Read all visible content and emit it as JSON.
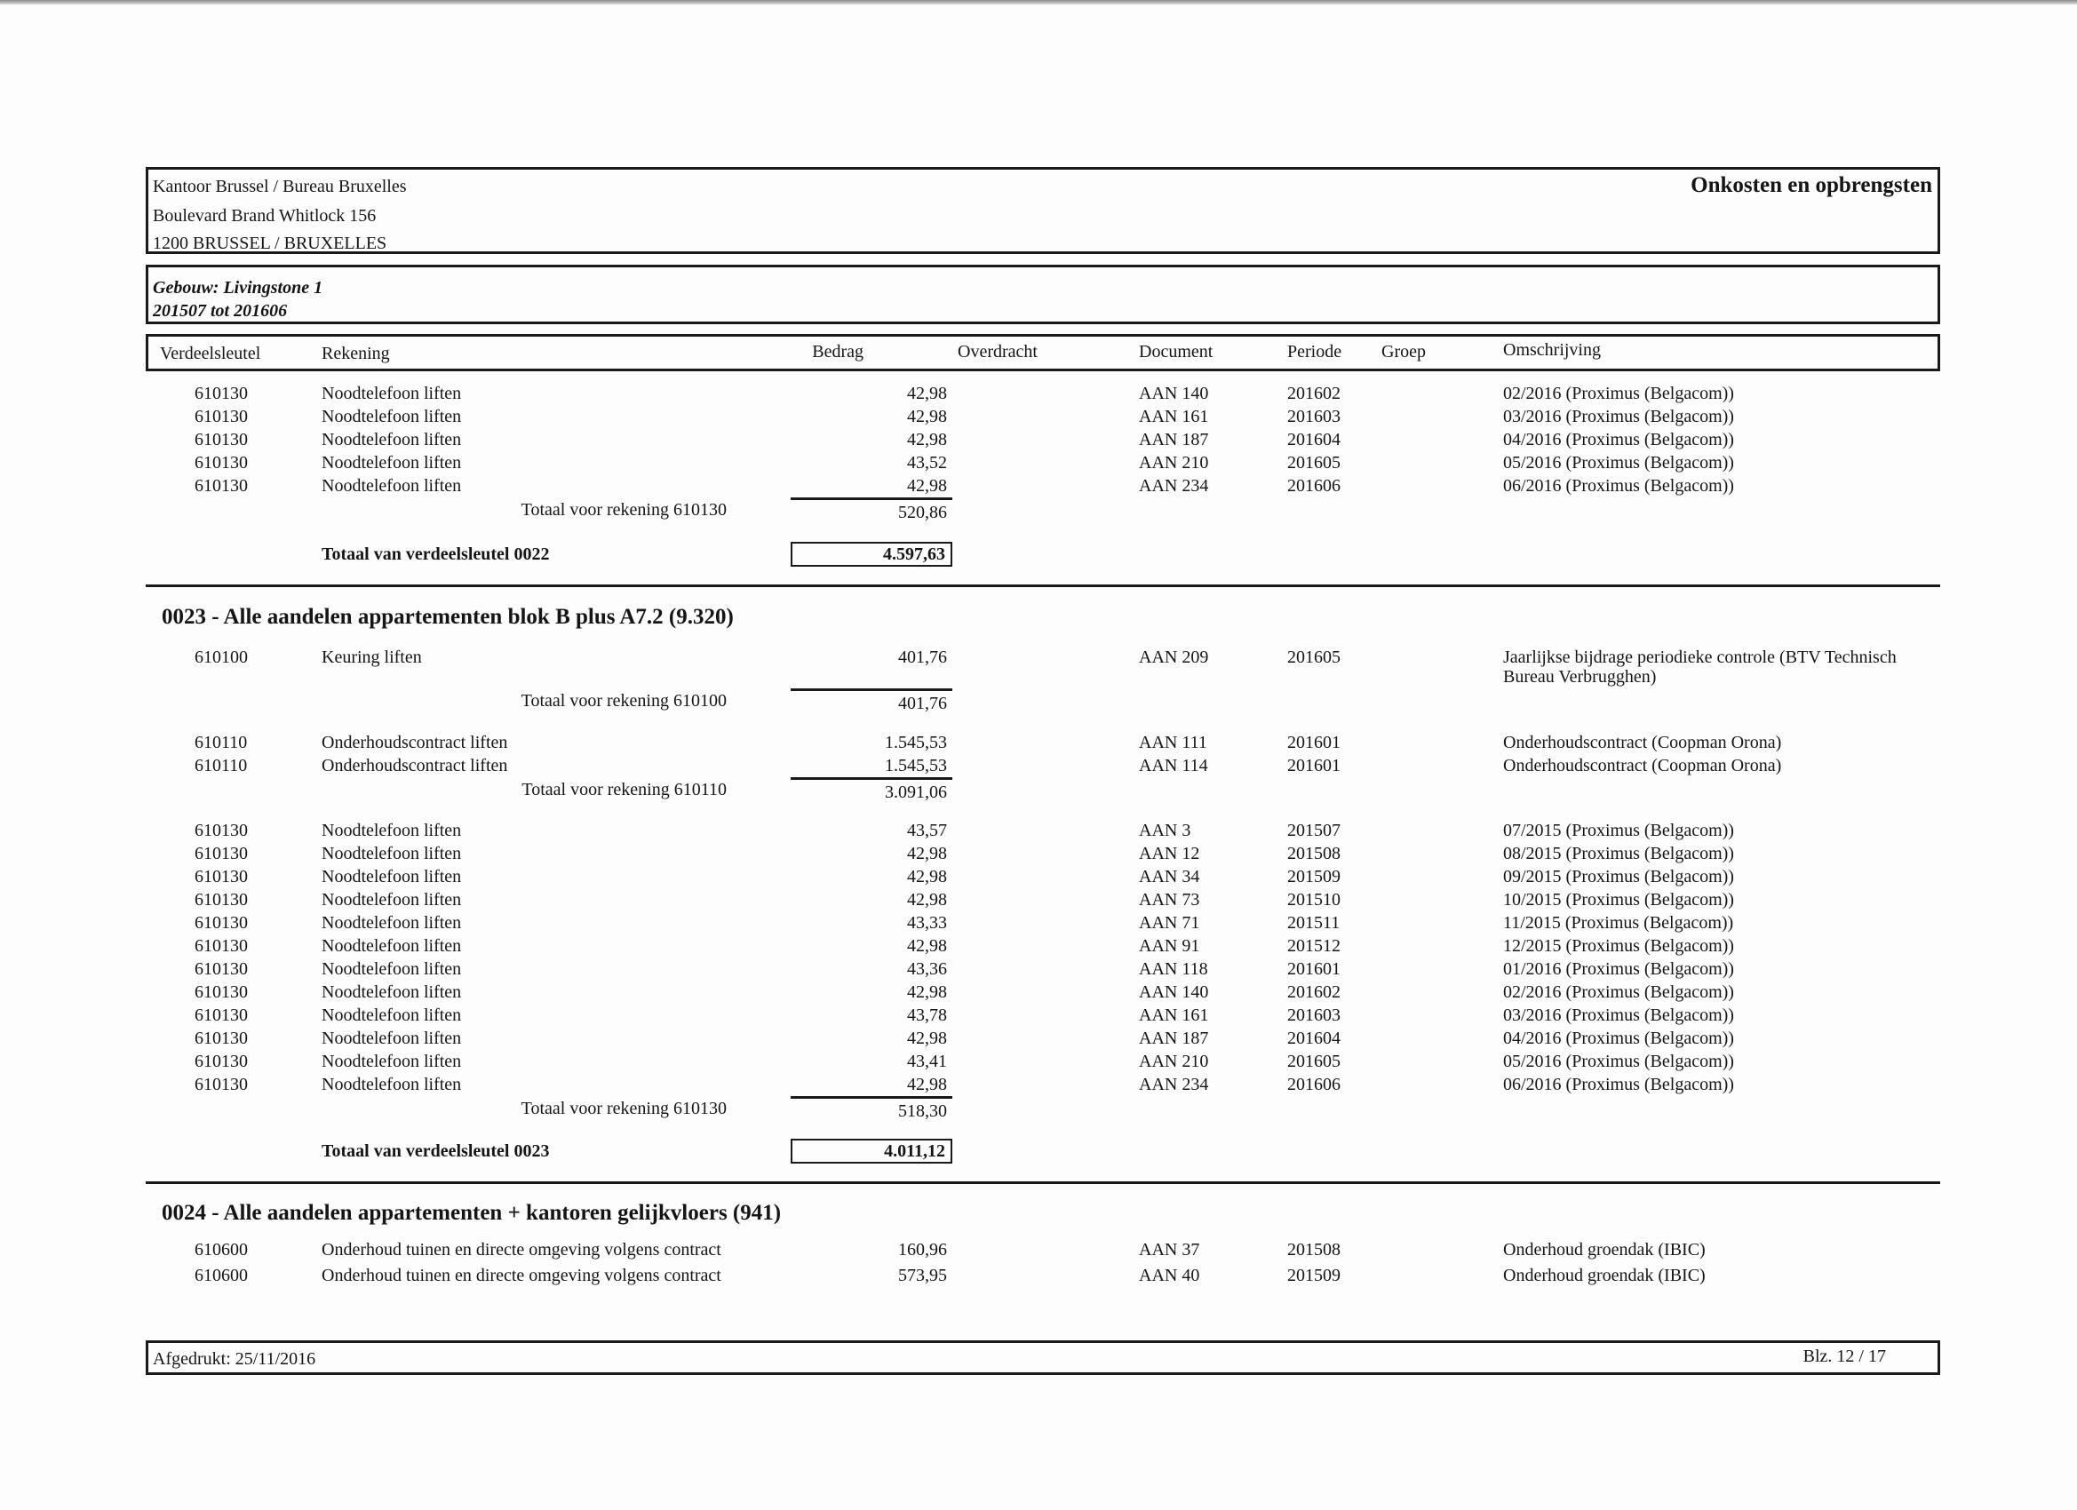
{
  "header": {
    "office_line1": "Kantoor Brussel / Bureau Bruxelles",
    "office_line2": "Boulevard Brand Whitlock 156",
    "office_line3": "1200 BRUSSEL / BRUXELLES",
    "report_title": "Onkosten en opbrengsten"
  },
  "building": {
    "name": "Gebouw: Livingstone 1",
    "period": "201507 tot 201606"
  },
  "columns": {
    "verdeelsleutel": "Verdeelsleutel",
    "rekening": "Rekening",
    "bedrag": "Bedrag",
    "overdracht": "Overdracht",
    "document": "Document",
    "periode": "Periode",
    "groep": "Groep",
    "omschrijving": "Omschrijving"
  },
  "sections": [
    {
      "heading": "",
      "groups": [
        {
          "rows": [
            {
              "code": "610130",
              "account": "Noodtelefoon liften",
              "amount": "42,98",
              "document": "AAN 140",
              "period": "201602",
              "description": "02/2016 (Proximus (Belgacom))"
            },
            {
              "code": "610130",
              "account": "Noodtelefoon liften",
              "amount": "42,98",
              "document": "AAN 161",
              "period": "201603",
              "description": "03/2016 (Proximus (Belgacom))"
            },
            {
              "code": "610130",
              "account": "Noodtelefoon liften",
              "amount": "42,98",
              "document": "AAN 187",
              "period": "201604",
              "description": "04/2016 (Proximus (Belgacom))"
            },
            {
              "code": "610130",
              "account": "Noodtelefoon liften",
              "amount": "43,52",
              "document": "AAN 210",
              "period": "201605",
              "description": "05/2016 (Proximus (Belgacom))"
            },
            {
              "code": "610130",
              "account": "Noodtelefoon liften",
              "amount": "42,98",
              "document": "AAN 234",
              "period": "201606",
              "description": "06/2016 (Proximus (Belgacom))"
            }
          ],
          "subtotal_label": "Totaal voor rekening 610130",
          "subtotal": "520,86"
        }
      ],
      "total_label": "Totaal van verdeelsleutel 0022",
      "total": "4.597,63"
    },
    {
      "heading": "0023 - Alle aandelen appartementen blok B plus A7.2 (9.320)",
      "groups": [
        {
          "rows": [
            {
              "code": "610100",
              "account": "Keuring liften",
              "amount": "401,76",
              "document": "AAN 209",
              "period": "201605",
              "description": "Jaarlijkse bijdrage periodieke controle (BTV Technisch Bureau Verbrugghen)"
            }
          ],
          "subtotal_label": "Totaal voor rekening 610100",
          "subtotal": "401,76"
        },
        {
          "rows": [
            {
              "code": "610110",
              "account": "Onderhoudscontract liften",
              "amount": "1.545,53",
              "document": "AAN 111",
              "period": "201601",
              "description": "Onderhoudscontract (Coopman Orona)"
            },
            {
              "code": "610110",
              "account": "Onderhoudscontract liften",
              "amount": "1.545,53",
              "document": "AAN 114",
              "period": "201601",
              "description": "Onderhoudscontract (Coopman Orona)"
            }
          ],
          "subtotal_label": "Totaal voor rekening 610110",
          "subtotal": "3.091,06"
        },
        {
          "rows": [
            {
              "code": "610130",
              "account": "Noodtelefoon liften",
              "amount": "43,57",
              "document": "AAN 3",
              "period": "201507",
              "description": "07/2015 (Proximus (Belgacom))"
            },
            {
              "code": "610130",
              "account": "Noodtelefoon liften",
              "amount": "42,98",
              "document": "AAN 12",
              "period": "201508",
              "description": "08/2015 (Proximus (Belgacom))"
            },
            {
              "code": "610130",
              "account": "Noodtelefoon liften",
              "amount": "42,98",
              "document": "AAN 34",
              "period": "201509",
              "description": "09/2015 (Proximus (Belgacom))"
            },
            {
              "code": "610130",
              "account": "Noodtelefoon liften",
              "amount": "42,98",
              "document": "AAN 73",
              "period": "201510",
              "description": "10/2015 (Proximus (Belgacom))"
            },
            {
              "code": "610130",
              "account": "Noodtelefoon liften",
              "amount": "43,33",
              "document": "AAN 71",
              "period": "201511",
              "description": "11/2015 (Proximus (Belgacom))"
            },
            {
              "code": "610130",
              "account": "Noodtelefoon liften",
              "amount": "42,98",
              "document": "AAN 91",
              "period": "201512",
              "description": "12/2015 (Proximus (Belgacom))"
            },
            {
              "code": "610130",
              "account": "Noodtelefoon liften",
              "amount": "43,36",
              "document": "AAN 118",
              "period": "201601",
              "description": "01/2016 (Proximus (Belgacom))"
            },
            {
              "code": "610130",
              "account": "Noodtelefoon liften",
              "amount": "42,98",
              "document": "AAN 140",
              "period": "201602",
              "description": "02/2016 (Proximus (Belgacom))"
            },
            {
              "code": "610130",
              "account": "Noodtelefoon liften",
              "amount": "43,78",
              "document": "AAN 161",
              "period": "201603",
              "description": "03/2016 (Proximus (Belgacom))"
            },
            {
              "code": "610130",
              "account": "Noodtelefoon liften",
              "amount": "42,98",
              "document": "AAN 187",
              "period": "201604",
              "description": "04/2016 (Proximus (Belgacom))"
            },
            {
              "code": "610130",
              "account": "Noodtelefoon liften",
              "amount": "43,41",
              "document": "AAN 210",
              "period": "201605",
              "description": "05/2016 (Proximus (Belgacom))"
            },
            {
              "code": "610130",
              "account": "Noodtelefoon liften",
              "amount": "42,98",
              "document": "AAN 234",
              "period": "201606",
              "description": "06/2016 (Proximus (Belgacom))"
            }
          ],
          "subtotal_label": "Totaal voor rekening 610130",
          "subtotal": "518,30"
        }
      ],
      "total_label": "Totaal van verdeelsleutel 0023",
      "total": "4.011,12"
    },
    {
      "heading": "0024 - Alle aandelen appartementen + kantoren gelijkvloers (941)",
      "groups": [
        {
          "rows": [
            {
              "code": "610600",
              "account": "Onderhoud tuinen en directe omgeving volgens contract",
              "amount": "160,96",
              "document": "AAN 37",
              "period": "201508",
              "description": "Onderhoud groendak (IBIC)"
            },
            {
              "code": "610600",
              "account": "Onderhoud tuinen en directe omgeving volgens contract",
              "amount": "573,95",
              "document": "AAN 40",
              "period": "201509",
              "description": "Onderhoud groendak (IBIC)"
            }
          ]
        }
      ]
    }
  ],
  "footer": {
    "printed": "Afgedrukt: 25/11/2016",
    "page": "Blz. 12 / 17"
  }
}
